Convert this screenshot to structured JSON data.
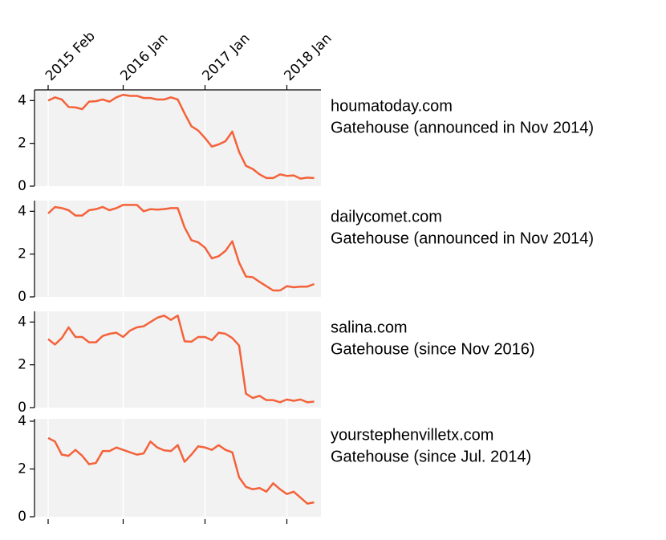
{
  "chart_data": [
    {
      "type": "line",
      "title": "houmatoday.com",
      "subtitle": "Gatehouse (announced in Nov 2014)",
      "x": [
        "2015-02",
        "2015-03",
        "2015-04",
        "2015-05",
        "2015-06",
        "2015-07",
        "2015-08",
        "2015-09",
        "2015-10",
        "2015-11",
        "2015-12",
        "2016-01",
        "2016-02",
        "2016-03",
        "2016-04",
        "2016-05",
        "2016-06",
        "2016-07",
        "2016-08",
        "2016-09",
        "2016-10",
        "2016-11",
        "2016-12",
        "2017-01",
        "2017-02",
        "2017-03",
        "2017-04",
        "2017-05",
        "2017-06",
        "2017-07",
        "2017-08",
        "2017-09",
        "2017-10",
        "2017-11",
        "2017-12",
        "2018-01",
        "2018-02",
        "2018-03",
        "2018-04",
        "2018-05"
      ],
      "values": [
        4.0,
        4.15,
        4.05,
        3.7,
        3.68,
        3.6,
        3.95,
        3.97,
        4.05,
        3.95,
        4.15,
        4.27,
        4.22,
        4.22,
        4.12,
        4.12,
        4.05,
        4.05,
        4.15,
        4.05,
        3.4,
        2.8,
        2.6,
        2.25,
        1.85,
        1.95,
        2.1,
        2.55,
        1.6,
        0.95,
        0.8,
        0.55,
        0.38,
        0.38,
        0.55,
        0.48,
        0.5,
        0.35,
        0.4,
        0.38
      ],
      "color": "#f4623a",
      "ylim": [
        0,
        4.5
      ],
      "yticks": [
        0,
        2,
        4
      ],
      "xlim": [
        "2014-12",
        "2018-06"
      ],
      "xticks": [
        {
          "value": "2015-02",
          "label": "2015 Feb"
        },
        {
          "value": "2016-01",
          "label": "2016 Jan"
        },
        {
          "value": "2017-01",
          "label": "2017 Jan"
        },
        {
          "value": "2018-01",
          "label": "2018 Jan"
        }
      ]
    },
    {
      "type": "line",
      "title": "dailycomet.com",
      "subtitle": "Gatehouse (announced in Nov 2014)",
      "x": [
        "2015-02",
        "2015-03",
        "2015-04",
        "2015-05",
        "2015-06",
        "2015-07",
        "2015-08",
        "2015-09",
        "2015-10",
        "2015-11",
        "2015-12",
        "2016-01",
        "2016-02",
        "2016-03",
        "2016-04",
        "2016-05",
        "2016-06",
        "2016-07",
        "2016-08",
        "2016-09",
        "2016-10",
        "2016-11",
        "2016-12",
        "2017-01",
        "2017-02",
        "2017-03",
        "2017-04",
        "2017-05",
        "2017-06",
        "2017-07",
        "2017-08",
        "2017-09",
        "2017-10",
        "2017-11",
        "2017-12",
        "2018-01",
        "2018-02",
        "2018-03",
        "2018-04",
        "2018-05"
      ],
      "values": [
        3.9,
        4.2,
        4.15,
        4.05,
        3.8,
        3.8,
        4.05,
        4.1,
        4.2,
        4.05,
        4.15,
        4.3,
        4.3,
        4.3,
        4.0,
        4.1,
        4.08,
        4.1,
        4.15,
        4.15,
        3.25,
        2.65,
        2.55,
        2.3,
        1.8,
        1.9,
        2.15,
        2.6,
        1.6,
        0.95,
        0.92,
        0.7,
        0.5,
        0.3,
        0.3,
        0.5,
        0.45,
        0.48,
        0.48,
        0.6
      ],
      "color": "#f4623a",
      "ylim": [
        0,
        4.5
      ],
      "yticks": [
        0,
        2,
        4
      ]
    },
    {
      "type": "line",
      "title": "salina.com",
      "subtitle": "Gatehouse (since Nov 2016)",
      "x": [
        "2015-02",
        "2015-03",
        "2015-04",
        "2015-05",
        "2015-06",
        "2015-07",
        "2015-08",
        "2015-09",
        "2015-10",
        "2015-11",
        "2015-12",
        "2016-01",
        "2016-02",
        "2016-03",
        "2016-04",
        "2016-05",
        "2016-06",
        "2016-07",
        "2016-08",
        "2016-09",
        "2016-10",
        "2016-11",
        "2016-12",
        "2017-01",
        "2017-02",
        "2017-03",
        "2017-04",
        "2017-05",
        "2017-06",
        "2017-07",
        "2017-08",
        "2017-09",
        "2017-10",
        "2017-11",
        "2017-12",
        "2018-01",
        "2018-02",
        "2018-03",
        "2018-04",
        "2018-05"
      ],
      "values": [
        3.2,
        2.95,
        3.25,
        3.75,
        3.3,
        3.3,
        3.05,
        3.05,
        3.35,
        3.45,
        3.5,
        3.3,
        3.6,
        3.75,
        3.8,
        4.0,
        4.2,
        4.3,
        4.1,
        4.3,
        3.1,
        3.08,
        3.3,
        3.3,
        3.15,
        3.5,
        3.45,
        3.25,
        2.9,
        0.65,
        0.45,
        0.55,
        0.35,
        0.35,
        0.25,
        0.38,
        0.32,
        0.38,
        0.25,
        0.28
      ],
      "color": "#f4623a",
      "ylim": [
        0,
        4.5
      ],
      "yticks": [
        0,
        2,
        4
      ]
    },
    {
      "type": "line",
      "title": "yourstephenvilletx.com",
      "subtitle": "Gatehouse (since Jul. 2014)",
      "x": [
        "2015-02",
        "2015-03",
        "2015-04",
        "2015-05",
        "2015-06",
        "2015-07",
        "2015-08",
        "2015-09",
        "2015-10",
        "2015-11",
        "2015-12",
        "2016-01",
        "2016-02",
        "2016-03",
        "2016-04",
        "2016-05",
        "2016-06",
        "2016-07",
        "2016-08",
        "2016-09",
        "2016-10",
        "2016-11",
        "2016-12",
        "2017-01",
        "2017-02",
        "2017-03",
        "2017-04",
        "2017-05",
        "2017-06",
        "2017-07",
        "2017-08",
        "2017-09",
        "2017-10",
        "2017-11",
        "2017-12",
        "2018-01",
        "2018-02",
        "2018-03",
        "2018-04",
        "2018-05"
      ],
      "values": [
        3.3,
        3.15,
        2.6,
        2.55,
        2.8,
        2.55,
        2.2,
        2.25,
        2.75,
        2.75,
        2.9,
        2.8,
        2.7,
        2.6,
        2.65,
        3.15,
        2.9,
        2.78,
        2.75,
        3.0,
        2.3,
        2.6,
        2.95,
        2.9,
        2.8,
        3.0,
        2.8,
        2.7,
        1.65,
        1.25,
        1.15,
        1.2,
        1.05,
        1.4,
        1.15,
        0.95,
        1.05,
        0.8,
        0.55,
        0.6
      ],
      "color": "#f4623a",
      "ylim": [
        0,
        4.1
      ],
      "yticks": [
        0,
        2,
        4
      ]
    }
  ]
}
